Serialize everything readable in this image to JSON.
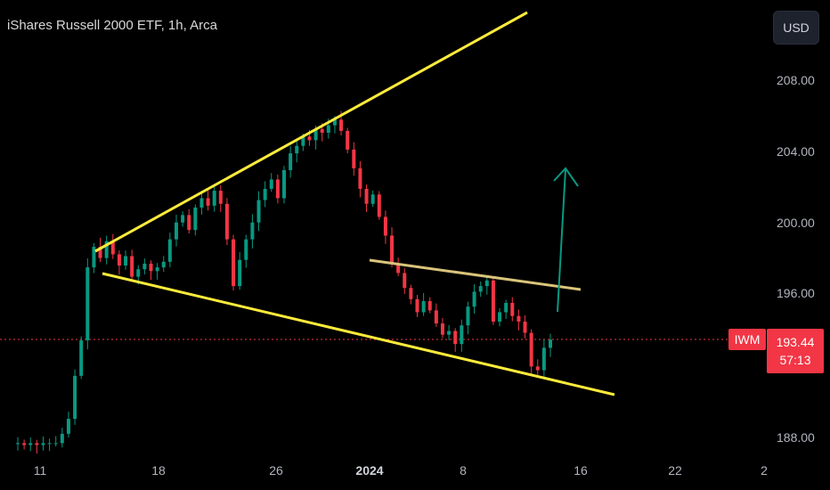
{
  "header": {
    "title": "iShares Russell 2000 ETF, 1h, Arca"
  },
  "currency_button": {
    "label": "USD"
  },
  "last_price": {
    "ticker": "IWM",
    "price": "193.44",
    "countdown": "57:13",
    "value": 193.44
  },
  "colors": {
    "up": "#089981",
    "down": "#f23645",
    "trend": "#ffeb3b",
    "resistance": "#d9c47a",
    "arrow": "#089981"
  },
  "chart_data": {
    "type": "candlestick",
    "title": "iShares Russell 2000 ETF, 1h, Arca",
    "y_tick_labels": [
      "208.00",
      "204.00",
      "200.00",
      "196.00",
      "188.00"
    ],
    "y_ticks": [
      208,
      204,
      200,
      196,
      188
    ],
    "x_tick_labels": [
      "11",
      "18",
      "26",
      "2024",
      "8",
      "16",
      "22",
      "2"
    ],
    "ylim": [
      187.3,
      211.6
    ],
    "grid": false,
    "approx_closes": [
      187.9,
      187.8,
      187.9,
      187.8,
      187.9,
      187.9,
      187.9,
      188.4,
      189.2,
      191.5,
      193.4,
      197.3,
      198.4,
      197.8,
      198.7,
      198.0,
      197.4,
      197.9,
      196.8,
      197.2,
      197.5,
      197.1,
      197.3,
      197.6,
      198.8,
      199.7,
      200.1,
      199.3,
      200.5,
      201.0,
      200.6,
      201.4,
      200.7,
      198.8,
      196.3,
      197.7,
      198.8,
      199.7,
      200.9,
      201.5,
      202.0,
      201.0,
      202.5,
      203.4,
      203.8,
      204.3,
      204.1,
      204.7,
      204.5,
      204.9,
      205.2,
      204.6,
      203.6,
      202.6,
      201.5,
      200.7,
      201.2,
      200.0,
      199.0,
      197.5,
      197.0,
      196.2,
      195.6,
      194.9,
      195.5,
      195.0,
      194.3,
      193.7,
      193.9,
      193.2,
      194.2,
      195.2,
      196.0,
      196.3,
      196.6,
      194.4,
      194.9,
      195.4,
      194.7,
      194.4,
      193.8,
      192.0,
      191.8,
      193.0,
      193.44
    ],
    "annotations": [
      {
        "kind": "trendline",
        "label": "upper wedge line",
        "from": [
          "Dec 14",
          198.6
        ],
        "to": [
          "Jan 16",
          211.3
        ]
      },
      {
        "kind": "trendline",
        "label": "lower wedge line",
        "from": [
          "Dec 14",
          197.1
        ],
        "to": [
          "Jan 18",
          190.3
        ]
      },
      {
        "kind": "trendline",
        "label": "resistance line",
        "from": [
          "Jan 2",
          197.8
        ],
        "to": [
          "Jan 16",
          196.2
        ]
      },
      {
        "kind": "arrow",
        "label": "projected breakout",
        "from": [
          "Jan 14",
          195.0
        ],
        "to": [
          "Jan 14",
          205.0
        ]
      }
    ]
  }
}
